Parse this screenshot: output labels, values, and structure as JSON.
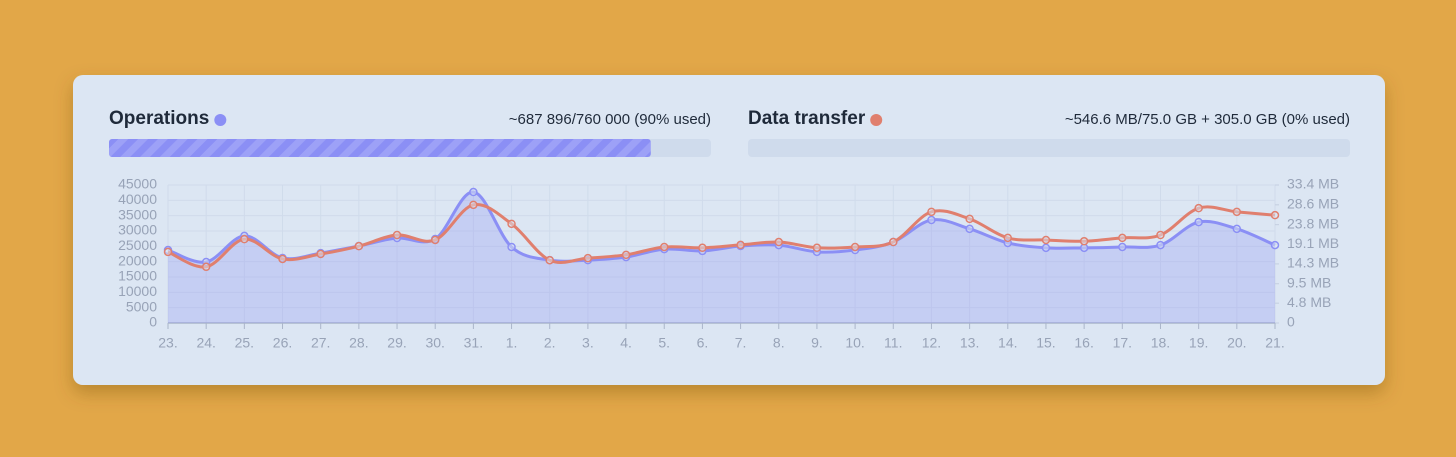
{
  "panels": [
    {
      "usage": "~687 896/760 000 (90% used)",
      "used_percent": 90
    },
    {
      "usage": "~546.6 MB/75.0 GB + 305.0 GB (0% used)",
      "used_percent": 0
    }
  ],
  "chart_data": {
    "type": "line",
    "categories": [
      "23.",
      "24.",
      "25.",
      "26.",
      "27.",
      "28.",
      "29.",
      "30.",
      "31.",
      "1.",
      "2.",
      "3.",
      "4.",
      "5.",
      "6.",
      "7.",
      "8.",
      "9.",
      "10.",
      "11.",
      "12.",
      "13.",
      "14.",
      "15.",
      "16.",
      "17.",
      "18.",
      "19.",
      "20.",
      "21."
    ],
    "series": [
      {
        "name": "Operations",
        "color": "#8b8ff5",
        "values": [
          23800,
          19900,
          28400,
          21200,
          22800,
          25100,
          27700,
          27400,
          42700,
          24800,
          20500,
          20500,
          21500,
          24100,
          23500,
          25100,
          25400,
          23200,
          23800,
          26400,
          33600,
          30700,
          26100,
          24500,
          24500,
          24800,
          25400,
          32900,
          30700,
          25400
        ]
      },
      {
        "name": "Data transfer",
        "color": "#e07f6e",
        "axis": "y2",
        "values": [
          17.2,
          13.6,
          20.3,
          15.5,
          16.7,
          18.6,
          21.3,
          20.1,
          28.6,
          24.0,
          15.2,
          15.7,
          16.5,
          18.4,
          18.2,
          18.9,
          19.6,
          18.2,
          18.4,
          19.6,
          26.9,
          25.2,
          20.6,
          20.1,
          19.8,
          20.6,
          21.3,
          27.8,
          26.9,
          26.1
        ]
      }
    ],
    "ylim": [
      0,
      45000
    ],
    "yticks": [
      0,
      5000,
      10000,
      15000,
      20000,
      25000,
      30000,
      35000,
      40000,
      45000
    ],
    "y2lim": [
      0,
      33.4
    ],
    "y2ticks": [
      0,
      {
        "value": 4.8,
        "label": "4.8 MB"
      },
      {
        "value": 9.5,
        "label": "9.5 MB"
      },
      {
        "value": 14.3,
        "label": "14.3 MB"
      },
      {
        "value": 19.1,
        "label": "19.1 MB"
      },
      {
        "value": 23.8,
        "label": "23.8 MB"
      },
      {
        "value": 28.6,
        "label": "28.6 MB"
      },
      {
        "value": 33.4,
        "label": "33.4 MB"
      }
    ],
    "grid": true
  }
}
